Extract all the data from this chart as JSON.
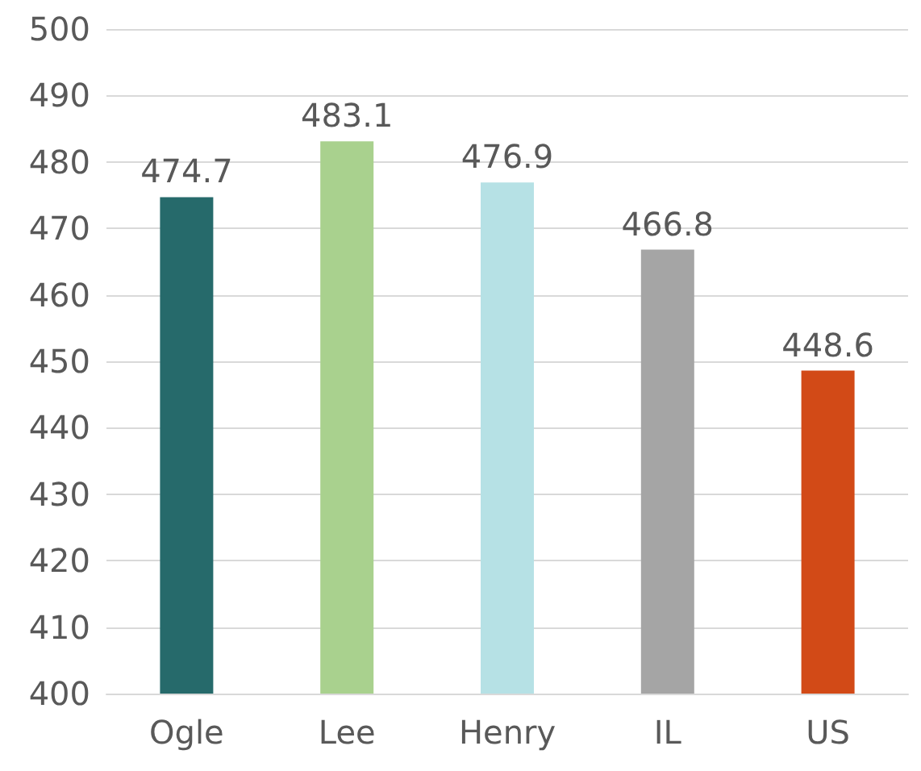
{
  "chart_data": {
    "type": "bar",
    "categories": [
      "Ogle",
      "Lee",
      "Henry",
      "IL",
      "US"
    ],
    "values": [
      474.7,
      483.1,
      476.9,
      466.8,
      448.6
    ],
    "colors": [
      "#266a6b",
      "#a9d18e",
      "#b6e1e5",
      "#a5a5a5",
      "#d24a17"
    ],
    "ylim": [
      400,
      500
    ],
    "yticks": [
      400,
      410,
      420,
      430,
      440,
      450,
      460,
      470,
      480,
      490,
      500
    ],
    "grid": "y",
    "data_labels": true
  }
}
